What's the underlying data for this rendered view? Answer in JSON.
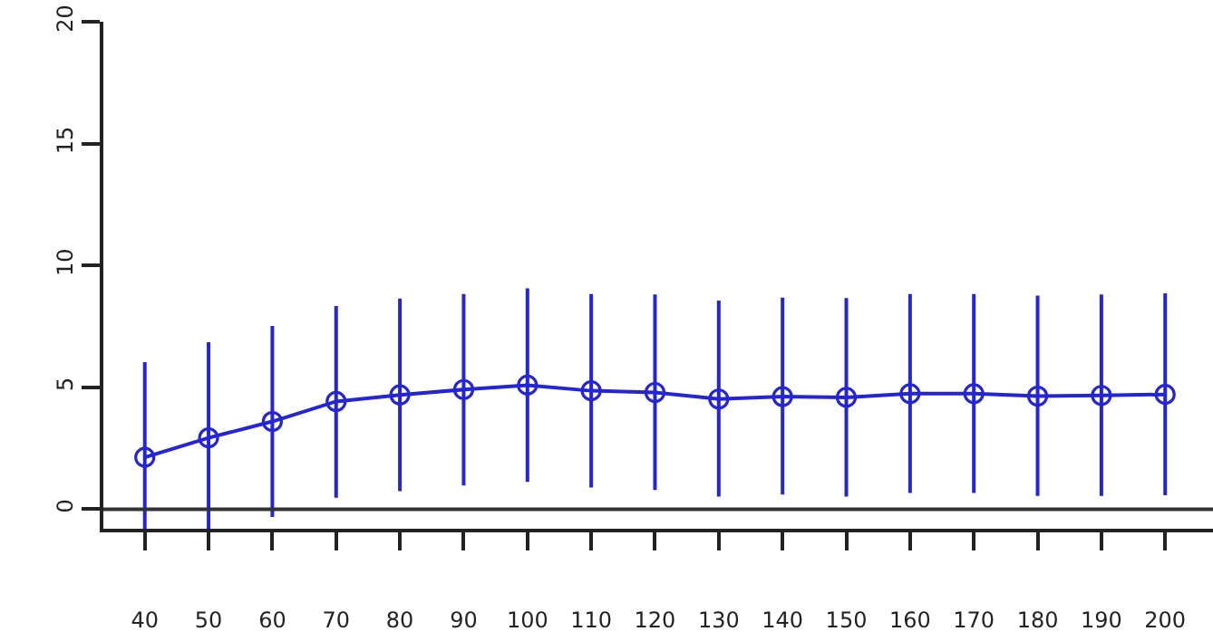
{
  "chart_data": {
    "type": "line",
    "categories": [
      "40",
      "50",
      "60",
      "70",
      "80",
      "90",
      "100",
      "110",
      "120",
      "130",
      "140",
      "150",
      "160",
      "170",
      "180",
      "190",
      "200"
    ],
    "series": [
      {
        "color": "#2424d8",
        "values": [
          2.13,
          2.93,
          3.6,
          4.42,
          4.69,
          4.91,
          5.09,
          4.86,
          4.79,
          4.52,
          4.62,
          4.59,
          4.74,
          4.74,
          4.64,
          4.67,
          4.71
        ],
        "errors": [
          [
            -0.8,
            6.03
          ],
          [
            -0.8,
            6.85
          ],
          [
            -0.32,
            7.52
          ],
          [
            0.47,
            8.34
          ],
          [
            0.74,
            8.64
          ],
          [
            0.97,
            8.83
          ],
          [
            1.12,
            9.06
          ],
          [
            0.89,
            8.83
          ],
          [
            0.79,
            8.81
          ],
          [
            0.52,
            8.56
          ],
          [
            0.6,
            8.68
          ],
          [
            0.52,
            8.66
          ],
          [
            0.67,
            8.83
          ],
          [
            0.67,
            8.83
          ],
          [
            0.55,
            8.76
          ],
          [
            0.55,
            8.81
          ],
          [
            0.57,
            8.86
          ]
        ]
      }
    ],
    "ylim": [
      -0.8,
      20
    ],
    "yticks": [
      0,
      5,
      10,
      15,
      20
    ],
    "marker": "circle",
    "line_style": "solid",
    "ref_lines": [
      {
        "axis": "y",
        "value": 0,
        "color": "#333333"
      }
    ]
  }
}
